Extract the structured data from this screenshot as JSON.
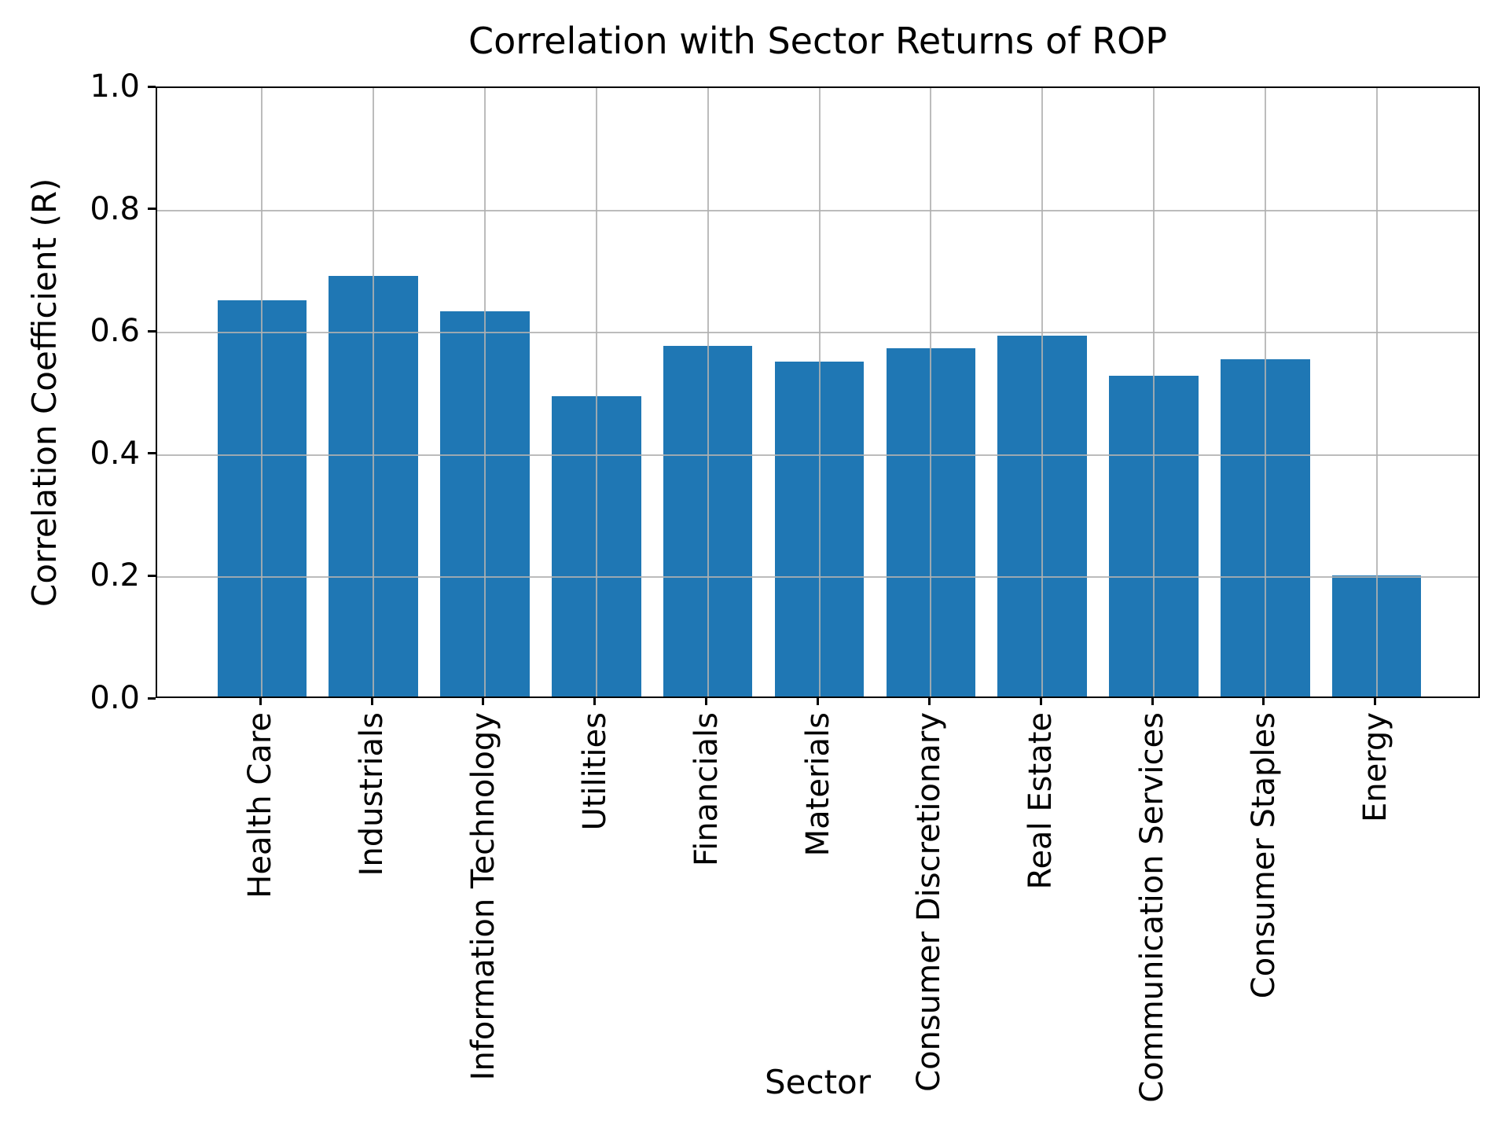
{
  "chart_data": {
    "type": "bar",
    "title": "Correlation with Sector Returns of ROP",
    "xlabel": "Sector",
    "ylabel": "Correlation Coefficient (R)",
    "categories": [
      "Health Care",
      "Industrials",
      "Information Technology",
      "Utilities",
      "Financials",
      "Materials",
      "Consumer Discretionary",
      "Real Estate",
      "Communication Services",
      "Consumer Staples",
      "Energy"
    ],
    "values": [
      0.648,
      0.688,
      0.63,
      0.491,
      0.573,
      0.548,
      0.57,
      0.59,
      0.525,
      0.551,
      0.198
    ],
    "ylim": [
      0.0,
      1.0
    ],
    "yticks": [
      "0.0",
      "0.2",
      "0.4",
      "0.6",
      "0.8",
      "1.0"
    ],
    "grid": true,
    "legend": "none",
    "bar_color": "#1f77b4",
    "grid_color": "#b0b0b0",
    "axis_color": "#000000"
  }
}
